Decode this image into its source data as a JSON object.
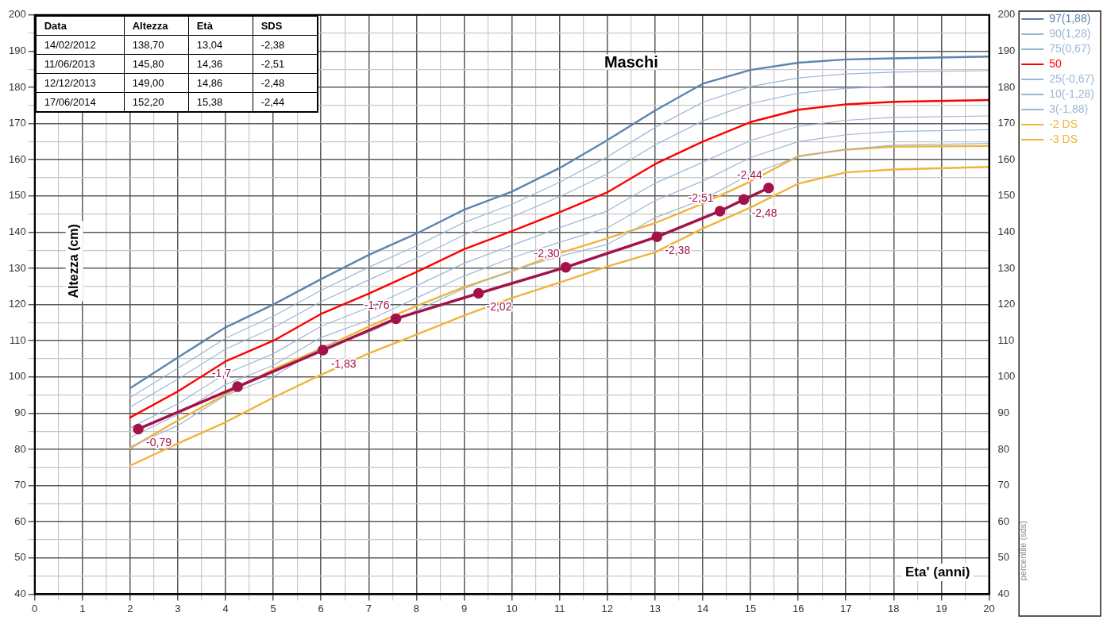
{
  "chart_data": {
    "type": "line",
    "title": "Maschi",
    "xlabel": "Eta' (anni)",
    "ylabel": "Altezza (cm)",
    "y2label": "percentile (sds)",
    "annotations": [
      "Data",
      "Altezza",
      "Età",
      "SDS",
      "14/02/2012",
      "138,70",
      "13,04",
      "-2,38",
      "11/06/2013",
      "145,80",
      "14,36",
      "-2,51",
      "12/12/2013",
      "149,00",
      "14,86",
      "-2,48",
      "17/06/2014",
      "152,20",
      "15,38",
      "-2,44",
      {
        "text": "-0,79",
        "x": 2.17,
        "y": 85.6
      },
      {
        "text": "-1,7",
        "x": 4.25,
        "y": 97.3
      },
      {
        "text": "-1,83",
        "x": 6.04,
        "y": 107.4
      },
      {
        "text": "-1,76",
        "x": 7.57,
        "y": 116.1
      },
      {
        "text": "-2,02",
        "x": 9.3,
        "y": 123.1
      },
      {
        "text": "-2,30",
        "x": 11.13,
        "y": 130.3
      },
      {
        "text": "-2,38",
        "x": 13.04,
        "y": 138.7
      },
      {
        "text": "-2,51",
        "x": 14.36,
        "y": 145.8
      },
      {
        "text": "-2,48",
        "x": 14.86,
        "y": 149
      },
      {
        "text": "-2,44",
        "x": 15.38,
        "y": 152.2
      }
    ],
    "x": [
      2,
      3,
      4,
      5,
      6,
      7,
      8,
      9,
      10,
      11,
      12,
      13,
      14,
      15,
      16,
      17,
      18,
      20
    ],
    "series": [
      {
        "name": "97(1,88)",
        "color": "#5b84b1",
        "values": [
          96.9,
          105.4,
          113.7,
          120,
          127,
          133.7,
          139.6,
          146.2,
          151.2,
          157.7,
          165.4,
          173.6,
          181,
          184.8,
          186.8,
          187.7,
          188,
          188.5
        ]
      },
      {
        "name": "90(1,28)",
        "color": "#9bb7d4",
        "values": [
          94.3,
          102.4,
          110.7,
          116.8,
          123.9,
          130.3,
          136.2,
          142.7,
          147.7,
          153.8,
          160.8,
          168.9,
          175.9,
          180.2,
          182.6,
          183.7,
          184.2,
          184.6
        ]
      },
      {
        "name": "75(0,67)",
        "color": "#9bb7d4",
        "values": [
          91.7,
          99.4,
          107.7,
          113.6,
          120.8,
          126.8,
          132.8,
          139.2,
          144.2,
          149.8,
          156.1,
          164.1,
          170.7,
          175.5,
          178.4,
          179.7,
          180.3,
          180.3
        ]
      },
      {
        "name": "50",
        "color": "#ff0000",
        "values": [
          88.8,
          96,
          104.3,
          110,
          117.4,
          123,
          129,
          135.3,
          140.3,
          145.5,
          151,
          158.8,
          165,
          170.4,
          173.8,
          175.3,
          176,
          176.5
        ]
      },
      {
        "name": "25(-0,67)",
        "color": "#9bb7d4",
        "values": [
          85.9,
          92.6,
          100.9,
          106.4,
          114,
          119.2,
          125.2,
          131.4,
          136.4,
          141.2,
          145.9,
          153.5,
          159.3,
          165.3,
          169.2,
          170.9,
          171.7,
          172.1
        ]
      },
      {
        "name": "10(-1,28)",
        "color": "#9bb7d4",
        "values": [
          83.3,
          89.6,
          97.9,
          103.2,
          110.9,
          115.7,
          121.8,
          127.9,
          132.9,
          137.2,
          141.2,
          148.7,
          154.1,
          160.6,
          165,
          166.9,
          167.8,
          168.3
        ]
      },
      {
        "name": "3(-1,88)",
        "color": "#9bb7d4",
        "values": [
          80.7,
          86.6,
          94.9,
          100,
          108.3,
          112.3,
          118.4,
          124.4,
          129.4,
          133.3,
          136.6,
          144,
          149,
          156,
          160.8,
          162.9,
          164,
          164.5
        ]
      },
      {
        "name": "-2 DS",
        "color": "#f0b43c",
        "values": [
          80.3,
          88,
          95.2,
          102.1,
          107.8,
          113.9,
          119.6,
          124.8,
          129.2,
          134.2,
          138.3,
          142.5,
          147.9,
          154,
          161,
          162.8,
          163.6,
          163.8
        ]
      },
      {
        "name": "-3 DS",
        "color": "#f0b43c",
        "values": [
          75.5,
          81.6,
          87.5,
          94.3,
          100.6,
          106.5,
          111.7,
          117,
          121.8,
          126.1,
          130.5,
          134.4,
          141,
          146.8,
          153.4,
          156.5,
          157.3,
          158
        ]
      },
      {
        "color": "#a3134a",
        "marker": "circle",
        "x": [
          2.17,
          4.25,
          6.04,
          7.57,
          9.3,
          11.13,
          13.04,
          14.36,
          14.86,
          15.38
        ],
        "values": [
          85.6,
          97.3,
          107.4,
          116.1,
          123.1,
          130.3,
          138.7,
          145.8,
          149,
          152.2
        ]
      }
    ],
    "xlim": [
      0,
      20
    ],
    "xticks": [
      0,
      {
        "value": 0.5,
        "label": null
      },
      1,
      {
        "value": 1.5,
        "label": null
      },
      2,
      {
        "value": 2.5,
        "label": null
      },
      3,
      {
        "value": 3.5,
        "label": null
      },
      4,
      {
        "value": 4.5,
        "label": null
      },
      5,
      {
        "value": 5.5,
        "label": null
      },
      6,
      {
        "value": 6.5,
        "label": null
      },
      7,
      {
        "value": 7.5,
        "label": null
      },
      8,
      {
        "value": 8.5,
        "label": null
      },
      9,
      {
        "value": 9.5,
        "label": null
      },
      10,
      {
        "value": 10.5,
        "label": null
      },
      11,
      {
        "value": 11.5,
        "label": null
      },
      12,
      {
        "value": 12.5,
        "label": null
      },
      13,
      {
        "value": 13.5,
        "label": null
      },
      14,
      {
        "value": 14.5,
        "label": null
      },
      15,
      {
        "value": 15.5,
        "label": null
      },
      16,
      {
        "value": 16.5,
        "label": null
      },
      17,
      {
        "value": 17.5,
        "label": null
      },
      18,
      {
        "value": 18.5,
        "label": null
      },
      19,
      {
        "value": 19.5,
        "label": null
      },
      20
    ],
    "ylim": [
      40,
      200
    ],
    "yticks": [
      40,
      {
        "value": 45,
        "label": null
      },
      50,
      {
        "value": 55,
        "label": null
      },
      60,
      {
        "value": 65,
        "label": null
      },
      70,
      {
        "value": 75,
        "label": null
      },
      80,
      {
        "value": 85,
        "label": null
      },
      90,
      {
        "value": 95,
        "label": null
      },
      100,
      {
        "value": 105,
        "label": null
      },
      110,
      {
        "value": 115,
        "label": null
      },
      120,
      {
        "value": 125,
        "label": null
      },
      130,
      {
        "value": 135,
        "label": null
      },
      140,
      {
        "value": 145,
        "label": null
      },
      150,
      {
        "value": 155,
        "label": null
      },
      160,
      {
        "value": 165,
        "label": null
      },
      170,
      {
        "value": 175,
        "label": null
      },
      180,
      {
        "value": 185,
        "label": null
      },
      190,
      {
        "value": 195,
        "label": null
      },
      200
    ],
    "y2lim": [
      40,
      200
    ],
    "y2ticks": [
      40,
      50,
      60,
      70,
      80,
      90,
      100,
      110,
      120,
      130,
      140,
      150,
      160,
      170,
      180,
      190,
      200
    ],
    "grid": true,
    "legend": "top right"
  }
}
